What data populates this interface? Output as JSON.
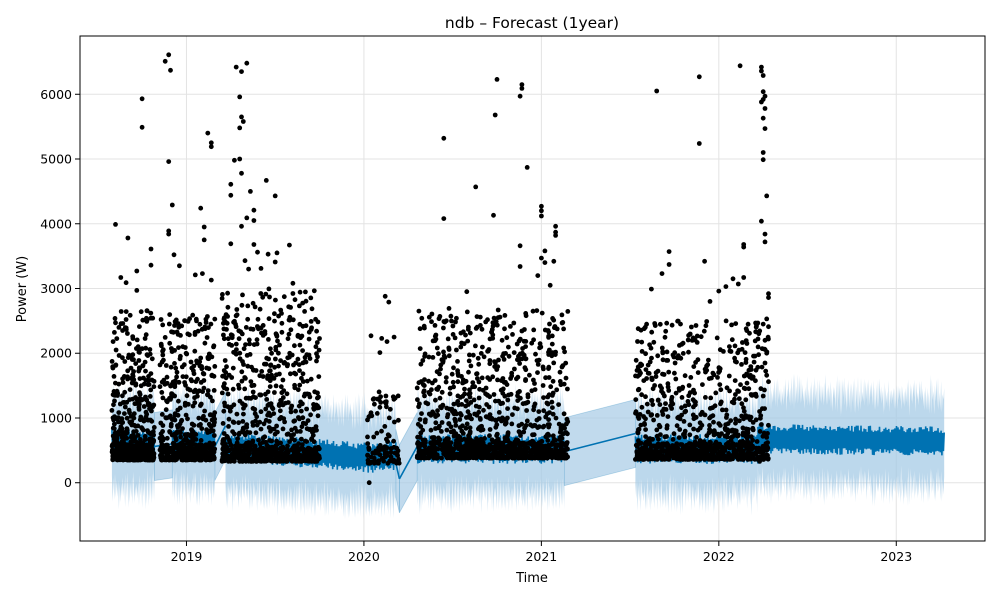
{
  "chart_data": {
    "type": "scatter",
    "title": "ndb – Forecast (1year)",
    "xlabel": "Time",
    "ylabel": "Power (W)",
    "xlim": [
      2018.4,
      2023.5
    ],
    "ylim": [
      -900,
      6900
    ],
    "x_ticks": [
      2019,
      2020,
      2021,
      2022,
      2023
    ],
    "y_ticks": [
      0,
      1000,
      2000,
      3000,
      4000,
      5000,
      6000
    ],
    "grid": true,
    "colors": {
      "observed": "#000000",
      "forecast": "#0072B2",
      "interval": "#a6cbe6"
    },
    "forecast": {
      "segments": [
        {
          "start": 2018.58,
          "end": 2018.82,
          "base": 600
        },
        {
          "start": 2018.92,
          "end": 2019.16,
          "base": 620
        },
        {
          "start": 2019.22,
          "end": 2020.05,
          "base": 560,
          "trend_end": 380
        },
        {
          "start": 2020.05,
          "end": 2020.18,
          "base": 420
        },
        {
          "start": 2020.3,
          "end": 2021.13,
          "base": 520
        },
        {
          "start": 2021.53,
          "end": 2022.22,
          "base": 520
        },
        {
          "start": 2022.22,
          "end": 2023.27,
          "base": 680,
          "trend_end": 640
        }
      ],
      "connectors": [
        {
          "x0": 2018.82,
          "y0": 560,
          "x1": 2018.92,
          "y1": 600
        },
        {
          "x0": 2019.16,
          "y0": 560,
          "x1": 2019.22,
          "y1": 880
        },
        {
          "x0": 2020.18,
          "y0": 300,
          "x1": 2020.2,
          "y1": 60
        },
        {
          "x0": 2020.2,
          "y0": 60,
          "x1": 2020.3,
          "y1": 560
        },
        {
          "x0": 2021.13,
          "y0": 480,
          "x1": 2021.53,
          "y1": 760
        }
      ],
      "amplitude": 230,
      "interval_half_width": 700
    },
    "observed": {
      "clusters": [
        {
          "start": 2018.58,
          "end": 2018.82,
          "low": 350,
          "high": 2700,
          "count": 420
        },
        {
          "start": 2018.85,
          "end": 2019.16,
          "low": 350,
          "high": 2600,
          "count": 380
        },
        {
          "start": 2019.2,
          "end": 2019.75,
          "low": 330,
          "high": 3000,
          "count": 650
        },
        {
          "start": 2020.02,
          "end": 2020.2,
          "low": 300,
          "high": 1500,
          "count": 80
        },
        {
          "start": 2020.3,
          "end": 2021.15,
          "low": 380,
          "high": 2700,
          "count": 900
        },
        {
          "start": 2021.53,
          "end": 2022.28,
          "low": 360,
          "high": 2500,
          "count": 700
        }
      ],
      "outliers": [
        [
          2018.6,
          3990
        ],
        [
          2018.67,
          3780
        ],
        [
          2018.72,
          3270
        ],
        [
          2018.75,
          5930
        ],
        [
          2018.75,
          5490
        ],
        [
          2018.8,
          3610
        ],
        [
          2018.8,
          3360
        ],
        [
          2018.63,
          3170
        ],
        [
          2018.66,
          3090
        ],
        [
          2018.72,
          2970
        ],
        [
          2018.88,
          6510
        ],
        [
          2018.9,
          6610
        ],
        [
          2018.91,
          6370
        ],
        [
          2018.9,
          4960
        ],
        [
          2018.92,
          4290
        ],
        [
          2018.9,
          3890
        ],
        [
          2018.9,
          3840
        ],
        [
          2018.93,
          3520
        ],
        [
          2018.96,
          3350
        ],
        [
          2019.08,
          4240
        ],
        [
          2019.1,
          3950
        ],
        [
          2019.1,
          3750
        ],
        [
          2019.12,
          5400
        ],
        [
          2019.14,
          5250
        ],
        [
          2019.14,
          5190
        ],
        [
          2019.05,
          3210
        ],
        [
          2019.09,
          3230
        ],
        [
          2019.14,
          3130
        ],
        [
          2019.27,
          4980
        ],
        [
          2019.3,
          5000
        ],
        [
          2019.28,
          6420
        ],
        [
          2019.31,
          6350
        ],
        [
          2019.34,
          6480
        ],
        [
          2019.3,
          5960
        ],
        [
          2019.31,
          5650
        ],
        [
          2019.32,
          5580
        ],
        [
          2019.3,
          5480
        ],
        [
          2019.31,
          4780
        ],
        [
          2019.25,
          4610
        ],
        [
          2019.25,
          4440
        ],
        [
          2019.36,
          4500
        ],
        [
          2019.38,
          4210
        ],
        [
          2019.34,
          4090
        ],
        [
          2019.38,
          4050
        ],
        [
          2019.31,
          3960
        ],
        [
          2019.25,
          3690
        ],
        [
          2019.38,
          3680
        ],
        [
          2019.45,
          4670
        ],
        [
          2019.5,
          4430
        ],
        [
          2019.58,
          3670
        ],
        [
          2019.4,
          3560
        ],
        [
          2019.46,
          3530
        ],
        [
          2019.51,
          3550
        ],
        [
          2019.33,
          3430
        ],
        [
          2019.35,
          3300
        ],
        [
          2019.42,
          3310
        ],
        [
          2019.5,
          3410
        ],
        [
          2019.6,
          3080
        ],
        [
          2020.04,
          2270
        ],
        [
          2020.1,
          2230
        ],
        [
          2020.12,
          2880
        ],
        [
          2020.14,
          2790
        ],
        [
          2020.13,
          2180
        ],
        [
          2020.17,
          2250
        ],
        [
          2020.09,
          2010
        ],
        [
          2020.03,
          0
        ],
        [
          2020.45,
          5320
        ],
        [
          2020.45,
          4080
        ],
        [
          2020.75,
          6230
        ],
        [
          2020.74,
          5680
        ],
        [
          2020.89,
          6150
        ],
        [
          2020.89,
          6090
        ],
        [
          2020.88,
          5970
        ],
        [
          2020.92,
          4870
        ],
        [
          2020.63,
          4570
        ],
        [
          2020.73,
          4130
        ],
        [
          2020.88,
          3660
        ],
        [
          2021.0,
          4270
        ],
        [
          2021.0,
          4200
        ],
        [
          2021.0,
          4120
        ],
        [
          2021.08,
          3960
        ],
        [
          2021.08,
          3870
        ],
        [
          2021.08,
          3820
        ],
        [
          2021.02,
          3580
        ],
        [
          2021.0,
          3470
        ],
        [
          2021.02,
          3400
        ],
        [
          2021.07,
          3420
        ],
        [
          2020.88,
          3340
        ],
        [
          2020.98,
          3200
        ],
        [
          2021.05,
          3050
        ],
        [
          2020.58,
          2950
        ],
        [
          2021.65,
          6050
        ],
        [
          2021.89,
          6270
        ],
        [
          2021.89,
          5240
        ],
        [
          2021.72,
          3570
        ],
        [
          2021.72,
          3370
        ],
        [
          2021.68,
          3230
        ],
        [
          2021.92,
          3420
        ],
        [
          2021.95,
          2800
        ],
        [
          2021.62,
          2990
        ],
        [
          2022.12,
          6440
        ],
        [
          2022.08,
          3150
        ],
        [
          2022.14,
          3170
        ],
        [
          2022.11,
          3070
        ],
        [
          2022.04,
          3030
        ],
        [
          2022.0,
          2960
        ],
        [
          2022.14,
          3680
        ],
        [
          2022.14,
          3640
        ],
        [
          2022.24,
          6420
        ],
        [
          2022.24,
          6360
        ],
        [
          2022.25,
          6290
        ],
        [
          2022.25,
          6040
        ],
        [
          2022.26,
          5970
        ],
        [
          2022.25,
          5920
        ],
        [
          2022.24,
          5880
        ],
        [
          2022.26,
          5780
        ],
        [
          2022.25,
          5630
        ],
        [
          2022.26,
          5470
        ],
        [
          2022.25,
          5100
        ],
        [
          2022.25,
          4990
        ],
        [
          2022.27,
          4430
        ],
        [
          2022.24,
          4040
        ],
        [
          2022.26,
          3840
        ],
        [
          2022.26,
          3720
        ],
        [
          2022.28,
          2920
        ],
        [
          2022.28,
          2860
        ],
        [
          2022.27,
          2530
        ],
        [
          2022.28,
          2410
        ],
        [
          2022.26,
          2200
        ],
        [
          2022.27,
          2000
        ],
        [
          2022.26,
          1850
        ],
        [
          2022.27,
          1660
        ],
        [
          2022.28,
          1560
        ],
        [
          2022.25,
          1340
        ],
        [
          2022.23,
          1100
        ],
        [
          2022.24,
          900
        ],
        [
          2022.27,
          700
        ],
        [
          2022.24,
          520
        ],
        [
          2022.26,
          380
        ],
        [
          2022.23,
          330
        ],
        [
          2022.25,
          360
        ]
      ]
    }
  }
}
